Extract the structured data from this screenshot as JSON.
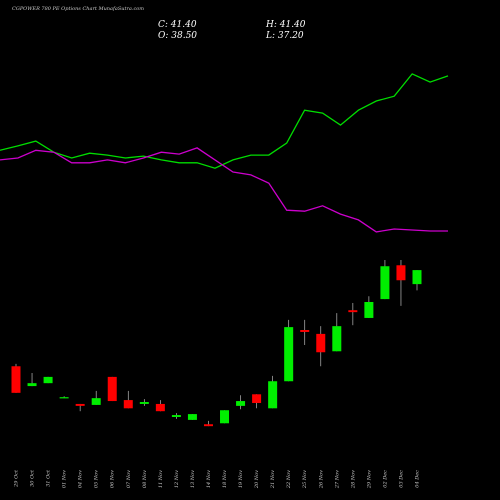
{
  "chart_data": {
    "type": "candlestick",
    "title": "CGPOWER 780 PE Options Chart MunafaSutra.com",
    "header": {
      "close": "C: 41.40",
      "high": "H: 41.40",
      "open": "O: 38.50",
      "low": "L: 37.20"
    },
    "categories": [
      "29 Oct",
      "30 Oct",
      "31 Oct",
      "01 Nov",
      "04 Nov",
      "05 Nov",
      "06 Nov",
      "07 Nov",
      "08 Nov",
      "11 Nov",
      "12 Nov",
      "13 Nov",
      "14 Nov",
      "18 Nov",
      "19 Nov",
      "20 Nov",
      "21 Nov",
      "22 Nov",
      "25 Nov",
      "26 Nov",
      "27 Nov",
      "28 Nov",
      "29 Nov",
      "02 Dec",
      "03 Dec",
      "04 Dec"
    ],
    "open": [
      21.5,
      17.4,
      18.0,
      15.1,
      13.7,
      13.5,
      19.3,
      14.5,
      13.7,
      13.7,
      11.0,
      10.4,
      9.5,
      9.7,
      13.3,
      15.7,
      12.8,
      18.4,
      29.0,
      28.2,
      24.6,
      33.1,
      31.5,
      35.4,
      42.4,
      38.5
    ],
    "high": [
      22.0,
      20.1,
      19.3,
      15.3,
      13.7,
      16.4,
      19.3,
      16.4,
      14.7,
      14.5,
      11.8,
      11.6,
      10.2,
      12.4,
      15.5,
      15.7,
      19.5,
      31.1,
      31.1,
      29.8,
      32.5,
      34.6,
      36.0,
      43.5,
      43.5,
      41.4
    ],
    "low": [
      16.0,
      17.4,
      18.0,
      14.9,
      12.2,
      13.5,
      14.3,
      12.8,
      13.3,
      12.2,
      10.6,
      10.4,
      9.1,
      9.7,
      12.6,
      12.8,
      12.8,
      18.4,
      25.9,
      21.5,
      24.6,
      30.0,
      31.5,
      35.4,
      34.0,
      37.2
    ],
    "close": [
      16.0,
      18.0,
      19.3,
      15.1,
      13.3,
      14.9,
      14.3,
      12.8,
      14.1,
      12.2,
      11.4,
      11.6,
      9.1,
      12.4,
      14.3,
      13.9,
      18.4,
      29.6,
      28.6,
      24.4,
      29.8,
      32.7,
      34.8,
      42.2,
      39.3,
      41.4
    ],
    "up_color": "#00ee00",
    "down_color": "#ff0000",
    "lines": [
      {
        "color": "#00dd00",
        "values": [
          66.2,
          67.1,
          68.1,
          65.8,
          64.6,
          65.6,
          65.2,
          64.6,
          65.0,
          64.2,
          63.6,
          63.6,
          62.5,
          64.2,
          65.2,
          65.2,
          67.7,
          74.5,
          73.9,
          71.4,
          74.5,
          76.4,
          77.4,
          82.0,
          80.3,
          81.6
        ]
      },
      {
        "color": "#cc00cc",
        "values": [
          64.2,
          64.6,
          66.2,
          65.8,
          63.6,
          63.6,
          64.2,
          63.6,
          64.6,
          65.8,
          65.4,
          66.7,
          64.2,
          61.7,
          61.1,
          59.4,
          53.8,
          53.6,
          54.7,
          53.0,
          51.8,
          49.3,
          49.9,
          49.7,
          49.5,
          49.5
        ]
      }
    ],
    "ylim": [
      2.1,
      97.3
    ]
  }
}
